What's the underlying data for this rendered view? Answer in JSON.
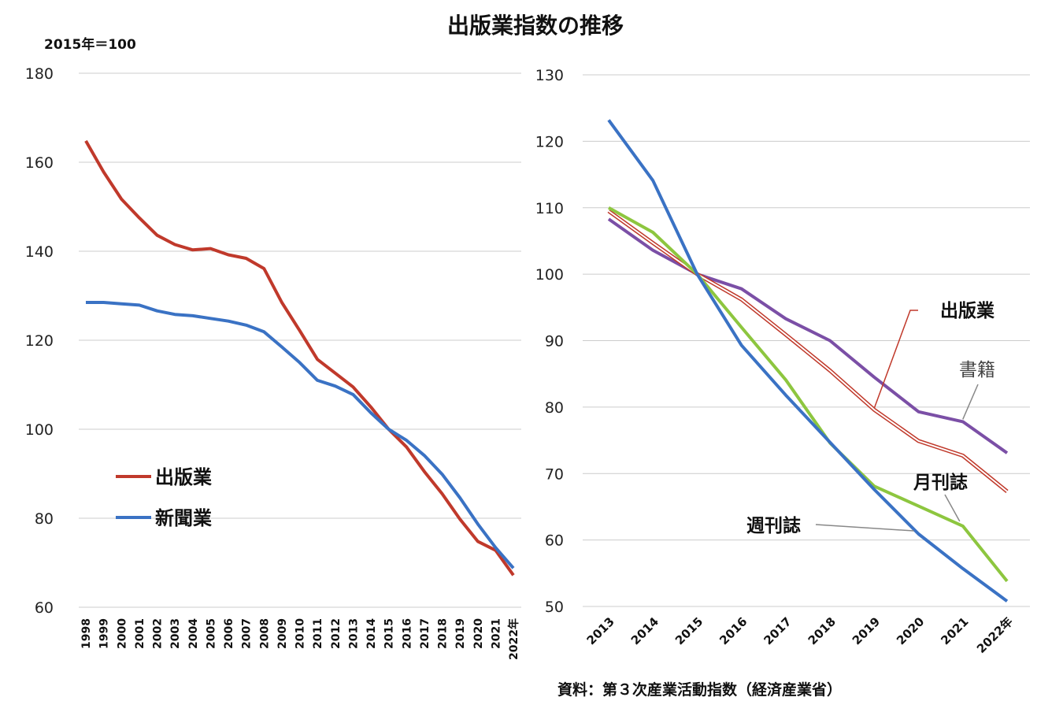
{
  "title": "出版業指数の推移",
  "unit_note": "2015年＝100",
  "source": "資料：第３次産業活動指数（経済産業省）",
  "colors": {
    "publishing": "#c0392b",
    "newspaper": "#3a72c4",
    "books": "#7b4fa6",
    "monthly": "#c0392b",
    "weekly_green": "#8dc63f",
    "weekly_blue": "#3a72c4",
    "grid": "#cccccc"
  },
  "chart_data": [
    {
      "type": "line",
      "title": "",
      "ylim": [
        60,
        180
      ],
      "yticks": [
        60,
        80,
        100,
        120,
        140,
        160,
        180
      ],
      "x": [
        "1998",
        "1999",
        "2000",
        "2001",
        "2002",
        "2003",
        "2004",
        "2005",
        "2006",
        "2007",
        "2008",
        "2009",
        "2010",
        "2011",
        "2012",
        "2013",
        "2014",
        "2015",
        "2016",
        "2017",
        "2018",
        "2019",
        "2020",
        "2021",
        "2022年"
      ],
      "grid": true,
      "legend_position": "left",
      "series": [
        {
          "name": "出版業",
          "color": "#c0392b",
          "values": [
            164.8,
            157.8,
            151.7,
            147.5,
            143.6,
            141.5,
            140.3,
            140.6,
            139.2,
            138.4,
            136.1,
            128.5,
            122.2,
            115.7,
            112.6,
            109.5,
            105.0,
            100.0,
            96.0,
            90.5,
            85.5,
            79.8,
            74.8,
            72.8,
            67.2
          ]
        },
        {
          "name": "新聞業",
          "color": "#3a72c4",
          "values": [
            128.5,
            128.5,
            128.2,
            127.9,
            126.6,
            125.8,
            125.5,
            124.9,
            124.3,
            123.4,
            121.9,
            118.5,
            115.0,
            111.0,
            109.7,
            107.8,
            103.7,
            100.0,
            97.5,
            94.1,
            89.9,
            84.6,
            78.7,
            73.4,
            68.8
          ]
        }
      ]
    },
    {
      "type": "line",
      "title": "",
      "ylim": [
        50,
        130
      ],
      "yticks": [
        50,
        60,
        70,
        80,
        90,
        100,
        110,
        120,
        130
      ],
      "x": [
        "2013",
        "2014",
        "2015",
        "2016",
        "2017",
        "2018",
        "2019",
        "2020",
        "2021",
        "2022年"
      ],
      "grid": true,
      "series": [
        {
          "name": "書籍",
          "color": "#7b4fa6",
          "values": [
            108.3,
            103.6,
            100.0,
            97.8,
            93.3,
            90.0,
            84.5,
            79.3,
            77.8,
            73.1
          ]
        },
        {
          "name": "出版業",
          "color": "#c0392b",
          "style": "double",
          "values": [
            109.5,
            104.7,
            100.0,
            96.2,
            90.9,
            85.5,
            79.6,
            74.9,
            72.7,
            67.3
          ]
        },
        {
          "name": "月刊誌",
          "color": "#8dc63f",
          "values": [
            110.0,
            106.3,
            100.0,
            92.0,
            84.1,
            74.6,
            68.1,
            65.1,
            62.1,
            53.8
          ]
        },
        {
          "name": "週刊誌",
          "color": "#3a72c4",
          "values": [
            123.2,
            114.1,
            100.0,
            89.3,
            81.8,
            74.7,
            67.6,
            60.9,
            55.7,
            50.8
          ]
        }
      ],
      "annotations": [
        {
          "text": "出版業",
          "series": "出版業"
        },
        {
          "text": "書籍",
          "series": "書籍"
        },
        {
          "text": "月刊誌",
          "series": "月刊誌"
        },
        {
          "text": "週刊誌",
          "series": "週刊誌"
        }
      ]
    }
  ]
}
